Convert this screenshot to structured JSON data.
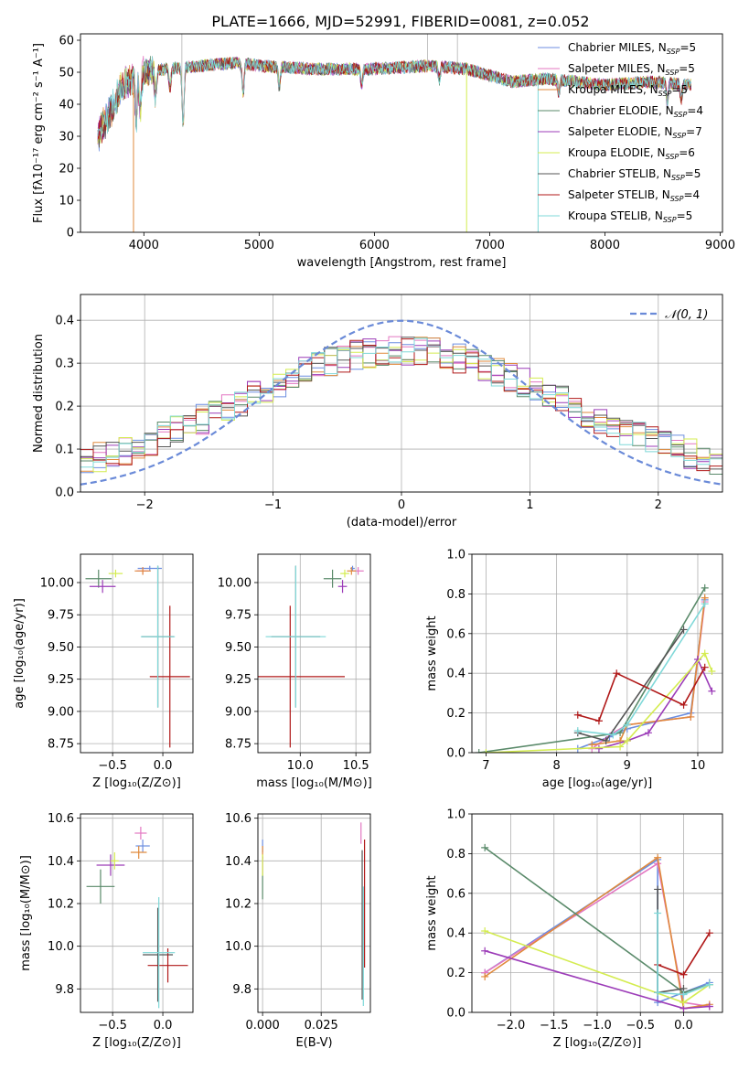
{
  "figure": {
    "title": "PLATE=1666, MJD=52991, FIBERID=0081, z=0.052",
    "colors": [
      "#6c8ee0",
      "#e377c2",
      "#e08a3c",
      "#5a8a6a",
      "#9c3cb8",
      "#d4ec50",
      "#555555",
      "#b01818",
      "#7fd8d8"
    ],
    "legend": [
      {
        "pre": "Chabrier MILES, N",
        "sub": "SSP",
        "post": "=5"
      },
      {
        "pre": "Salpeter MILES, N",
        "sub": "SSP",
        "post": "=5"
      },
      {
        "pre": "Kroupa MILES, N",
        "sub": "SSP",
        "post": "=5"
      },
      {
        "pre": "Chabrier ELODIE, N",
        "sub": "SSP",
        "post": "=4"
      },
      {
        "pre": "Salpeter ELODIE, N",
        "sub": "SSP",
        "post": "=7"
      },
      {
        "pre": "Kroupa ELODIE, N",
        "sub": "SSP",
        "post": "=6"
      },
      {
        "pre": "Chabrier STELIB, N",
        "sub": "SSP",
        "post": "=5"
      },
      {
        "pre": "Salpeter STELIB, N",
        "sub": "SSP",
        "post": "=4"
      },
      {
        "pre": "Kroupa STELIB, N",
        "sub": "SSP",
        "post": "=5"
      }
    ],
    "hist_legend": "𝒩(0, 1)"
  },
  "chart_data": [
    {
      "id": "spectrum",
      "type": "line",
      "xlabel": "wavelength [Angstrom, rest frame]",
      "ylabel": "Flux [fλ10⁻¹⁷ erg cm⁻² s⁻¹ A⁻¹]",
      "xlim": [
        3450,
        9020
      ],
      "ylim": [
        0,
        62
      ],
      "xticks": [
        4000,
        5000,
        6000,
        7000,
        8000,
        9000
      ],
      "yticks": [
        0,
        10,
        20,
        30,
        40,
        50,
        60
      ],
      "x_range": [
        3600,
        8750
      ],
      "continuum": [
        [
          3600,
          30
        ],
        [
          3700,
          37
        ],
        [
          3800,
          45
        ],
        [
          3900,
          48
        ],
        [
          4000,
          50
        ],
        [
          4200,
          51
        ],
        [
          4500,
          52
        ],
        [
          4800,
          53
        ],
        [
          5000,
          52
        ],
        [
          5500,
          51
        ],
        [
          6000,
          51
        ],
        [
          6500,
          52
        ],
        [
          6800,
          51
        ],
        [
          7000,
          49
        ],
        [
          7200,
          47
        ],
        [
          7500,
          48
        ],
        [
          8000,
          46
        ],
        [
          8400,
          47
        ],
        [
          8750,
          46
        ]
      ],
      "absorption": [
        [
          3934,
          14
        ],
        [
          3968,
          12
        ],
        [
          4102,
          8
        ],
        [
          4226,
          6
        ],
        [
          4340,
          18
        ],
        [
          4861,
          10
        ],
        [
          5175,
          6
        ],
        [
          5890,
          5
        ],
        [
          6563,
          4
        ],
        [
          7600,
          4
        ],
        [
          8542,
          6
        ],
        [
          8662,
          5
        ]
      ],
      "spikes_down": [
        [
          3910,
          0
        ],
        [
          6800,
          0
        ],
        [
          7420,
          0
        ]
      ],
      "spikes_up": [
        [
          4330,
          62
        ],
        [
          6720,
          62
        ],
        [
          6460,
          62
        ]
      ]
    },
    {
      "id": "residual-hist",
      "type": "line",
      "xlabel": "(data-model)/error",
      "ylabel": "Normed distribution",
      "xlim": [
        -2.5,
        2.5
      ],
      "ylim": [
        0,
        0.46
      ],
      "xticks": [
        -2,
        -1,
        0,
        1,
        2
      ],
      "yticks": [
        0.0,
        0.1,
        0.2,
        0.3,
        0.4
      ],
      "grid": true,
      "bin_width": 0.1,
      "legend_position": "top-right",
      "gaussian": {
        "mu": 0,
        "sigma": 1,
        "label": "𝒩(0, 1)"
      }
    },
    {
      "id": "z-vs-age",
      "type": "scatter",
      "xlabel": "Z [log₁₀(Z/Z⊙)]",
      "ylabel": "age  [log₁₀(age/yr)]",
      "xlim": [
        -0.82,
        0.3
      ],
      "ylim": [
        8.68,
        10.22
      ],
      "xticks": [
        -0.5,
        0.0
      ],
      "yticks": [
        8.75,
        9.0,
        9.25,
        9.5,
        9.75,
        10.0
      ],
      "grid": true,
      "points": [
        {
          "s": 0,
          "x": -0.13,
          "y": 10.11,
          "xe": 0.12,
          "ye": 0.02
        },
        {
          "s": 1,
          "x": -0.2,
          "y": 10.09,
          "xe": 0.06,
          "ye": 0.03
        },
        {
          "s": 2,
          "x": -0.2,
          "y": 10.09,
          "xe": 0.08,
          "ye": 0.03
        },
        {
          "s": 3,
          "x": -0.64,
          "y": 10.03,
          "xe": 0.13,
          "ye": 0.07
        },
        {
          "s": 4,
          "x": -0.6,
          "y": 9.97,
          "xe": 0.13,
          "ye": 0.05
        },
        {
          "s": 5,
          "x": -0.47,
          "y": 10.07,
          "xe": 0.07,
          "ye": 0.03
        },
        {
          "s": 6,
          "x": -0.05,
          "y": 9.58,
          "xe": 0.16,
          "ye": 0.55
        },
        {
          "s": 7,
          "x": 0.07,
          "y": 9.27,
          "xe": 0.2,
          "ye": 0.55
        },
        {
          "s": 8,
          "x": -0.05,
          "y": 9.58,
          "xe": 0.17,
          "ye": 0.55
        }
      ]
    },
    {
      "id": "mass-vs-age",
      "type": "scatter",
      "xlabel": "mass [log₁₀(M/M⊙)]",
      "ylabel": "",
      "xlim": [
        9.62,
        10.63
      ],
      "ylim": [
        8.68,
        10.22
      ],
      "xticks": [
        10.0,
        10.5
      ],
      "yticks": [
        8.75,
        9.0,
        9.25,
        9.5,
        9.75,
        10.0
      ],
      "grid": true,
      "points": [
        {
          "s": 0,
          "x": 10.47,
          "y": 10.11,
          "xe": 0.02,
          "ye": 0.02
        },
        {
          "s": 1,
          "x": 10.52,
          "y": 10.09,
          "xe": 0.05,
          "ye": 0.03
        },
        {
          "s": 2,
          "x": 10.46,
          "y": 10.09,
          "xe": 0.04,
          "ye": 0.03
        },
        {
          "s": 3,
          "x": 10.29,
          "y": 10.03,
          "xe": 0.08,
          "ye": 0.07
        },
        {
          "s": 4,
          "x": 10.38,
          "y": 9.97,
          "xe": 0.04,
          "ye": 0.05
        },
        {
          "s": 5,
          "x": 10.4,
          "y": 10.07,
          "xe": 0.04,
          "ye": 0.03
        },
        {
          "s": 6,
          "x": 9.96,
          "y": 9.58,
          "xe": 0.22,
          "ye": 0.55
        },
        {
          "s": 7,
          "x": 9.91,
          "y": 9.27,
          "xe": 0.49,
          "ye": 0.55
        },
        {
          "s": 8,
          "x": 9.96,
          "y": 9.58,
          "xe": 0.27,
          "ye": 0.55
        }
      ]
    },
    {
      "id": "age-vs-massweight",
      "type": "line",
      "xlabel": "age  [log₁₀(age/yr)]",
      "ylabel": "mass weight",
      "xlim": [
        6.8,
        10.35
      ],
      "ylim": [
        0,
        1
      ],
      "xticks": [
        7,
        8,
        9,
        10
      ],
      "yticks": [
        0.0,
        0.2,
        0.4,
        0.6,
        0.8,
        1.0
      ],
      "grid": true,
      "series": [
        {
          "s": 0,
          "points": [
            [
              8.3,
              0.02
            ],
            [
              8.75,
              0.08
            ],
            [
              9.0,
              0.12
            ],
            [
              9.9,
              0.2
            ],
            [
              10.1,
              0.77
            ]
          ]
        },
        {
          "s": 1,
          "points": [
            [
              8.5,
              0.02
            ],
            [
              8.8,
              0.1
            ],
            [
              9.0,
              0.14
            ],
            [
              9.9,
              0.18
            ],
            [
              10.1,
              0.76
            ]
          ]
        },
        {
          "s": 2,
          "points": [
            [
              8.5,
              0.04
            ],
            [
              8.9,
              0.06
            ],
            [
              9.0,
              0.14
            ],
            [
              9.9,
              0.18
            ],
            [
              10.1,
              0.78
            ]
          ]
        },
        {
          "s": 3,
          "points": [
            [
              6.9,
              0.0
            ],
            [
              8.9,
              0.1
            ],
            [
              10.1,
              0.83
            ]
          ]
        },
        {
          "s": 4,
          "points": [
            [
              8.6,
              0.02
            ],
            [
              9.0,
              0.06
            ],
            [
              9.3,
              0.1
            ],
            [
              10.0,
              0.47
            ],
            [
              10.2,
              0.31
            ]
          ]
        },
        {
          "s": 5,
          "points": [
            [
              7.0,
              0.0
            ],
            [
              8.9,
              0.03
            ],
            [
              9.0,
              0.06
            ],
            [
              10.1,
              0.5
            ],
            [
              10.2,
              0.41
            ]
          ]
        },
        {
          "s": 6,
          "points": [
            [
              8.3,
              0.1
            ],
            [
              8.7,
              0.06
            ],
            [
              9.8,
              0.62
            ]
          ]
        },
        {
          "s": 7,
          "points": [
            [
              8.3,
              0.19
            ],
            [
              8.6,
              0.16
            ],
            [
              8.85,
              0.4
            ],
            [
              9.8,
              0.24
            ],
            [
              10.1,
              0.43
            ]
          ]
        },
        {
          "s": 8,
          "points": [
            [
              8.3,
              0.11
            ],
            [
              8.8,
              0.09
            ],
            [
              9.0,
              0.14
            ],
            [
              10.1,
              0.75
            ]
          ]
        }
      ]
    },
    {
      "id": "z-vs-mass",
      "type": "scatter",
      "xlabel": "Z [log₁₀(Z/Z⊙)]",
      "ylabel": "mass [log₁₀(M/M⊙)]",
      "xlim": [
        -0.82,
        0.3
      ],
      "ylim": [
        9.69,
        10.62
      ],
      "xticks": [
        -0.5,
        0.0
      ],
      "yticks": [
        9.8,
        10.0,
        10.2,
        10.4,
        10.6
      ],
      "grid": true,
      "points": [
        {
          "s": 0,
          "x": -0.2,
          "y": 10.47,
          "xe": 0.07,
          "ye": 0.03
        },
        {
          "s": 1,
          "x": -0.22,
          "y": 10.53,
          "xe": 0.06,
          "ye": 0.03
        },
        {
          "s": 2,
          "x": -0.24,
          "y": 10.44,
          "xe": 0.08,
          "ye": 0.03
        },
        {
          "s": 3,
          "x": -0.62,
          "y": 10.28,
          "xe": 0.14,
          "ye": 0.08
        },
        {
          "s": 4,
          "x": -0.52,
          "y": 10.38,
          "xe": 0.14,
          "ye": 0.05
        },
        {
          "s": 5,
          "x": -0.48,
          "y": 10.4,
          "xe": 0.04,
          "ye": 0.04
        },
        {
          "s": 6,
          "x": -0.05,
          "y": 9.96,
          "xe": 0.15,
          "ye": 0.22
        },
        {
          "s": 7,
          "x": 0.05,
          "y": 9.91,
          "xe": 0.2,
          "ye": 0.08
        },
        {
          "s": 8,
          "x": -0.04,
          "y": 9.97,
          "xe": 0.16,
          "ye": 0.26
        }
      ]
    },
    {
      "id": "ebv-vs-mass",
      "type": "scatter",
      "xlabel": "E(B-V)",
      "ylabel": "",
      "xlim": [
        -0.002,
        0.046
      ],
      "ylim": [
        9.69,
        10.62
      ],
      "xticks": [
        0.0,
        0.025
      ],
      "yticks": [
        9.8,
        10.0,
        10.2,
        10.4,
        10.6
      ],
      "grid": true,
      "points": [
        {
          "s": 0,
          "x": 0.0,
          "y": 10.47,
          "xe": 0.0,
          "ye": 0.03
        },
        {
          "s": 1,
          "x": 0.042,
          "y": 10.53,
          "xe": 0.0,
          "ye": 0.05
        },
        {
          "s": 2,
          "x": 0.0,
          "y": 10.44,
          "xe": 0.0,
          "ye": 0.03
        },
        {
          "s": 3,
          "x": 0.0,
          "y": 10.28,
          "xe": 0.0,
          "ye": 0.06
        },
        {
          "s": 4,
          "x": 0.0,
          "y": 10.38,
          "xe": 0.0,
          "ye": 0.04
        },
        {
          "s": 5,
          "x": 0.0,
          "y": 10.38,
          "xe": 0.0,
          "ye": 0.05
        },
        {
          "s": 6,
          "x": 0.0425,
          "y": 10.1,
          "xe": 0.0,
          "ye": 0.35
        },
        {
          "s": 7,
          "x": 0.0435,
          "y": 10.2,
          "xe": 0.0,
          "ye": 0.3
        },
        {
          "s": 8,
          "x": 0.043,
          "y": 10.0,
          "xe": 0.0,
          "ye": 0.28
        }
      ]
    },
    {
      "id": "z-vs-massweight",
      "type": "line",
      "xlabel": "Z [log₁₀(Z/Z⊙)]",
      "ylabel": "mass weight",
      "xlim": [
        -2.45,
        0.45
      ],
      "ylim": [
        0,
        1
      ],
      "xticks": [
        -2.0,
        -1.5,
        -1.0,
        -0.5,
        0.0
      ],
      "yticks": [
        0.0,
        0.2,
        0.4,
        0.6,
        0.8,
        1.0
      ],
      "grid": true,
      "series": [
        {
          "s": 0,
          "points": [
            [
              -2.3,
              0.2
            ],
            [
              -0.3,
              0.77
            ],
            [
              -0.3,
              0.05
            ],
            [
              0.0,
              0.1
            ],
            [
              0.3,
              0.15
            ]
          ]
        },
        {
          "s": 1,
          "points": [
            [
              -2.3,
              0.2
            ],
            [
              -0.3,
              0.75
            ],
            [
              0.0,
              0.05
            ],
            [
              0.3,
              0.03
            ]
          ]
        },
        {
          "s": 2,
          "points": [
            [
              -2.3,
              0.18
            ],
            [
              -0.3,
              0.78
            ],
            [
              0.0,
              0.02
            ],
            [
              0.3,
              0.04
            ]
          ]
        },
        {
          "s": 3,
          "points": [
            [
              -2.3,
              0.83
            ],
            [
              0.0,
              0.1
            ],
            [
              0.3,
              0.14
            ]
          ]
        },
        {
          "s": 4,
          "points": [
            [
              -2.3,
              0.31
            ],
            [
              0.0,
              0.02
            ],
            [
              0.3,
              0.03
            ]
          ]
        },
        {
          "s": 5,
          "points": [
            [
              -2.3,
              0.41
            ],
            [
              0.0,
              0.05
            ],
            [
              0.3,
              0.14
            ]
          ]
        },
        {
          "s": 6,
          "points": [
            [
              -0.3,
              0.62
            ],
            [
              -0.3,
              0.1
            ],
            [
              0.0,
              0.12
            ]
          ]
        },
        {
          "s": 7,
          "points": [
            [
              -0.3,
              0.24
            ],
            [
              0.0,
              0.19
            ],
            [
              0.3,
              0.4
            ]
          ]
        },
        {
          "s": 8,
          "points": [
            [
              -0.3,
              0.5
            ],
            [
              -0.3,
              0.1
            ],
            [
              0.0,
              0.09
            ],
            [
              0.3,
              0.14
            ]
          ]
        }
      ]
    }
  ]
}
